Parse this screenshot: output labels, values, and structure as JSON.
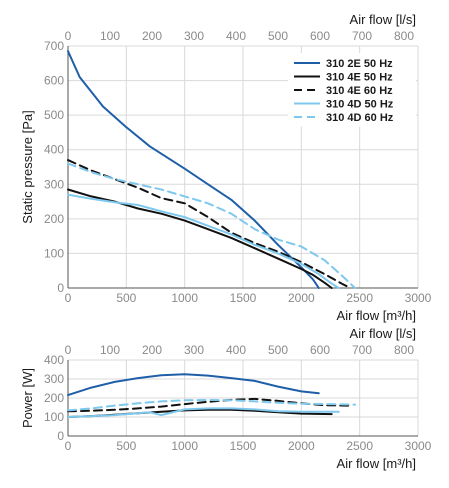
{
  "chart_data": [
    {
      "type": "line",
      "ylabel": "Static pressure [Pa]",
      "xlabel": "Air flow [m³/h]",
      "x2label": "Air flow [l/s]",
      "xlim": [
        0,
        3000
      ],
      "ylim": [
        0,
        700
      ],
      "x2lim": [
        0,
        833.33
      ],
      "xticks": [
        0,
        500,
        1000,
        1500,
        2000,
        2500,
        3000
      ],
      "yticks": [
        0,
        100,
        200,
        300,
        400,
        500,
        600,
        700
      ],
      "x2ticks": [
        0,
        100,
        200,
        300,
        400,
        500,
        600,
        700,
        800
      ],
      "grid": true,
      "legend_position": "top-right",
      "series": [
        {
          "name": "310 2E 50 Hz",
          "color": "#1f5fa8",
          "dash": "solid",
          "x": [
            0,
            100,
            300,
            500,
            700,
            1000,
            1200,
            1400,
            1600,
            1800,
            2000,
            2100,
            2150
          ],
          "y": [
            685,
            610,
            525,
            465,
            410,
            345,
            300,
            255,
            195,
            125,
            60,
            25,
            0
          ]
        },
        {
          "name": "310 4E 50 Hz",
          "color": "#111111",
          "dash": "solid",
          "x": [
            0,
            200,
            400,
            600,
            800,
            1000,
            1200,
            1400,
            1600,
            1800,
            2000,
            2100,
            2200,
            2260
          ],
          "y": [
            285,
            265,
            250,
            230,
            215,
            195,
            170,
            145,
            115,
            85,
            55,
            38,
            15,
            0
          ]
        },
        {
          "name": "310 4E 60 Hz",
          "color": "#111111",
          "dash": "dashed",
          "x": [
            0,
            200,
            400,
            600,
            800,
            1000,
            1200,
            1400,
            1600,
            1800,
            2000,
            2200,
            2350,
            2420
          ],
          "y": [
            370,
            340,
            315,
            290,
            260,
            245,
            205,
            160,
            130,
            105,
            75,
            40,
            12,
            0
          ]
        },
        {
          "name": "310 4D 50 Hz",
          "color": "#7ec8ee",
          "dash": "solid",
          "x": [
            0,
            200,
            400,
            600,
            800,
            1000,
            1200,
            1400,
            1600,
            1800,
            2000,
            2150,
            2250,
            2320
          ],
          "y": [
            270,
            258,
            248,
            240,
            222,
            205,
            180,
            155,
            125,
            100,
            70,
            40,
            15,
            0
          ]
        },
        {
          "name": "310 4D 60 Hz",
          "color": "#7ec8ee",
          "dash": "dashed",
          "x": [
            0,
            200,
            400,
            600,
            800,
            1000,
            1200,
            1400,
            1600,
            1800,
            2000,
            2200,
            2350,
            2460
          ],
          "y": [
            360,
            335,
            315,
            300,
            285,
            265,
            245,
            215,
            170,
            140,
            120,
            80,
            35,
            0
          ]
        }
      ]
    },
    {
      "type": "line",
      "ylabel": "Power [W]",
      "xlabel": "Air flow [m³/h]",
      "x2label": "Air flow [l/s]",
      "xlim": [
        0,
        3000
      ],
      "ylim": [
        0,
        400
      ],
      "x2lim": [
        0,
        833.33
      ],
      "xticks": [
        0,
        500,
        1000,
        1500,
        2000,
        2500,
        3000
      ],
      "yticks": [
        0,
        100,
        200,
        300,
        400
      ],
      "x2ticks": [
        0,
        100,
        200,
        300,
        400,
        500,
        600,
        700,
        800
      ],
      "grid": true,
      "series": [
        {
          "name": "310 2E 50 Hz",
          "color": "#1f5fa8",
          "dash": "solid",
          "x": [
            0,
            200,
            400,
            600,
            800,
            1000,
            1200,
            1400,
            1600,
            1800,
            2000,
            2150
          ],
          "y": [
            215,
            255,
            285,
            305,
            320,
            325,
            318,
            305,
            290,
            260,
            235,
            225
          ]
        },
        {
          "name": "310 4E 50 Hz",
          "color": "#111111",
          "dash": "solid",
          "x": [
            0,
            200,
            400,
            600,
            800,
            1000,
            1200,
            1400,
            1600,
            1800,
            2000,
            2260
          ],
          "y": [
            100,
            105,
            112,
            120,
            128,
            135,
            138,
            138,
            133,
            125,
            118,
            115
          ]
        },
        {
          "name": "310 4E 60 Hz",
          "color": "#111111",
          "dash": "dashed",
          "x": [
            0,
            200,
            400,
            600,
            800,
            1000,
            1200,
            1400,
            1600,
            1800,
            2000,
            2200,
            2420
          ],
          "y": [
            130,
            133,
            138,
            145,
            155,
            168,
            180,
            190,
            195,
            185,
            172,
            162,
            160
          ]
        },
        {
          "name": "310 4D 50 Hz",
          "color": "#7ec8ee",
          "dash": "solid",
          "x": [
            0,
            200,
            400,
            600,
            700,
            800,
            1000,
            1200,
            1400,
            1600,
            1800,
            2000,
            2320
          ],
          "y": [
            100,
            105,
            110,
            120,
            125,
            110,
            140,
            145,
            145,
            140,
            130,
            128,
            128
          ]
        },
        {
          "name": "310 4D 60 Hz",
          "color": "#7ec8ee",
          "dash": "dashed",
          "x": [
            0,
            200,
            400,
            600,
            800,
            1000,
            1200,
            1400,
            1600,
            1800,
            2000,
            2200,
            2460
          ],
          "y": [
            135,
            145,
            160,
            172,
            182,
            188,
            190,
            188,
            182,
            175,
            170,
            168,
            165
          ]
        }
      ]
    }
  ]
}
